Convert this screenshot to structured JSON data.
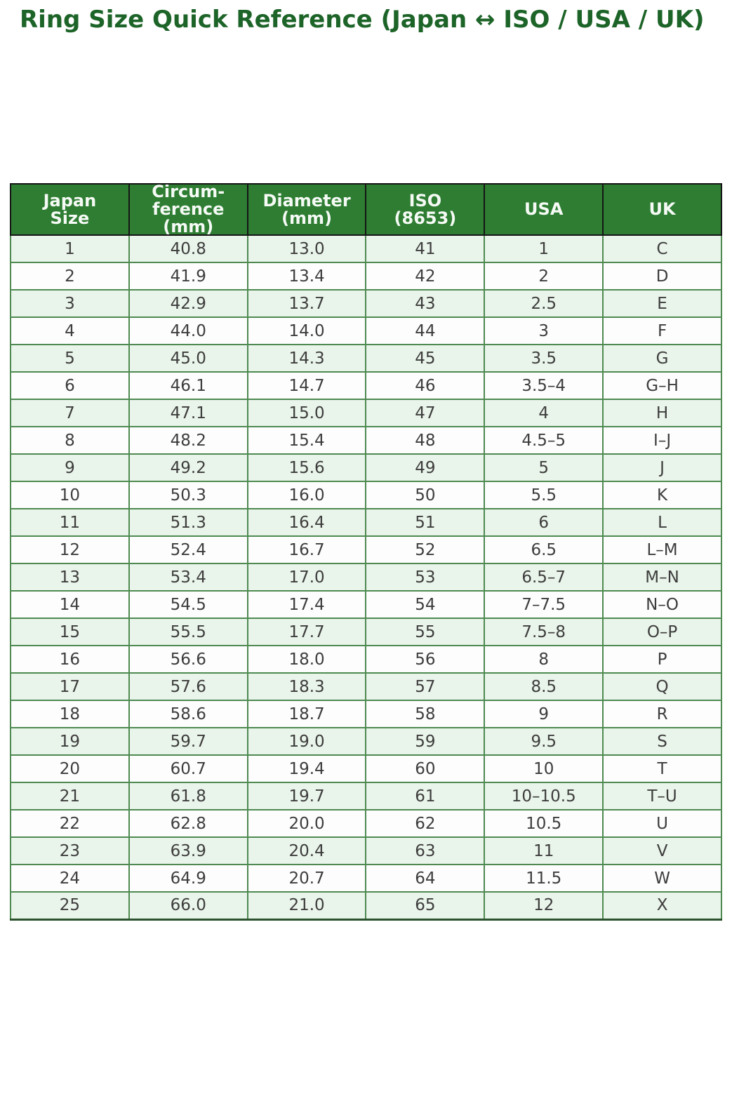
{
  "page": {
    "title": "Ring Size Quick Reference (Japan ↔ ISO / USA / UK)"
  },
  "colors": {
    "title_color": "#1d6428",
    "header_bg": "#2e7d32",
    "header_text": "#f5faf5",
    "header_border": "#151515",
    "body_border": "#4e8a51",
    "stripe_a": "#e9f4ea",
    "stripe_b": "#fdfdfd",
    "cell_text": "#3d3d3d",
    "table_bottom": "#2c532e"
  },
  "chart_data": {
    "type": "table",
    "title": "Ring Size Quick Reference (Japan ↔ ISO / USA / UK)",
    "columns": [
      "Japan\nSize",
      "Circum-\nference\n(mm)",
      "Diameter\n(mm)",
      "ISO\n(8653)",
      "USA",
      "UK"
    ],
    "column_keys": [
      "japan_size",
      "circumference_mm",
      "diameter_mm",
      "iso_8653",
      "usa",
      "uk"
    ],
    "layout": {
      "striped": true,
      "header_position": "top",
      "columns_count": 6,
      "rows_count": 25
    },
    "rows": [
      [
        "1",
        "40.8",
        "13.0",
        "41",
        "1",
        "C"
      ],
      [
        "2",
        "41.9",
        "13.4",
        "42",
        "2",
        "D"
      ],
      [
        "3",
        "42.9",
        "13.7",
        "43",
        "2.5",
        "E"
      ],
      [
        "4",
        "44.0",
        "14.0",
        "44",
        "3",
        "F"
      ],
      [
        "5",
        "45.0",
        "14.3",
        "45",
        "3.5",
        "G"
      ],
      [
        "6",
        "46.1",
        "14.7",
        "46",
        "3.5–4",
        "G–H"
      ],
      [
        "7",
        "47.1",
        "15.0",
        "47",
        "4",
        "H"
      ],
      [
        "8",
        "48.2",
        "15.4",
        "48",
        "4.5–5",
        "I–J"
      ],
      [
        "9",
        "49.2",
        "15.6",
        "49",
        "5",
        "J"
      ],
      [
        "10",
        "50.3",
        "16.0",
        "50",
        "5.5",
        "K"
      ],
      [
        "11",
        "51.3",
        "16.4",
        "51",
        "6",
        "L"
      ],
      [
        "12",
        "52.4",
        "16.7",
        "52",
        "6.5",
        "L–M"
      ],
      [
        "13",
        "53.4",
        "17.0",
        "53",
        "6.5–7",
        "M–N"
      ],
      [
        "14",
        "54.5",
        "17.4",
        "54",
        "7–7.5",
        "N–O"
      ],
      [
        "15",
        "55.5",
        "17.7",
        "55",
        "7.5–8",
        "O–P"
      ],
      [
        "16",
        "56.6",
        "18.0",
        "56",
        "8",
        "P"
      ],
      [
        "17",
        "57.6",
        "18.3",
        "57",
        "8.5",
        "Q"
      ],
      [
        "18",
        "58.6",
        "18.7",
        "58",
        "9",
        "R"
      ],
      [
        "19",
        "59.7",
        "19.0",
        "59",
        "9.5",
        "S"
      ],
      [
        "20",
        "60.7",
        "19.4",
        "60",
        "10",
        "T"
      ],
      [
        "21",
        "61.8",
        "19.7",
        "61",
        "10–10.5",
        "T–U"
      ],
      [
        "22",
        "62.8",
        "20.0",
        "62",
        "10.5",
        "U"
      ],
      [
        "23",
        "63.9",
        "20.4",
        "63",
        "11",
        "V"
      ],
      [
        "24",
        "64.9",
        "20.7",
        "64",
        "11.5",
        "W"
      ],
      [
        "25",
        "66.0",
        "21.0",
        "65",
        "12",
        "X"
      ]
    ]
  }
}
